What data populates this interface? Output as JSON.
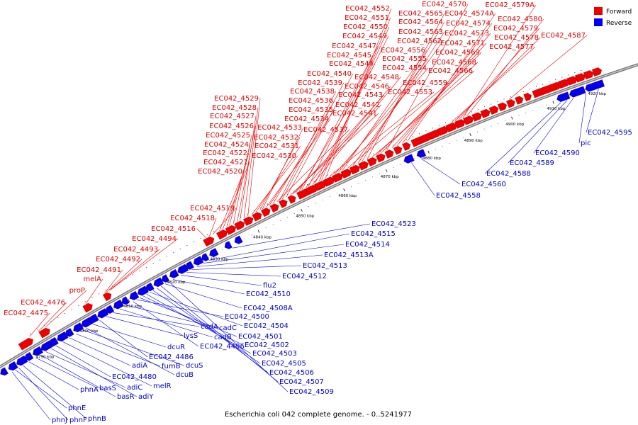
{
  "caption": "Escherichia coli 042 complete genome. - 0..5241977",
  "legend": [
    {
      "label": "Forward",
      "color": "#ee0000"
    },
    {
      "label": "Reverse",
      "color": "#0000ee"
    }
  ],
  "colors": {
    "forward": "#ee0000",
    "reverse": "#0000ee",
    "backbone": "#888888"
  },
  "ticks": [
    "4790 kbp",
    "4800 kbp",
    "4810 kbp",
    "4820 kbp",
    "4830 kbp",
    "4840 kbp",
    "4850 kbp",
    "4860 kbp",
    "4870 kbp",
    "4880 kbp",
    "4890 kbp",
    "4900 kbp",
    "4910 kbp",
    "4920 kbp"
  ],
  "forward_labels": [
    "EC042_4475",
    "EC042_4476",
    "proP",
    "melA",
    "EC042_4491",
    "EC042_4492",
    "EC042_4493",
    "EC042_4494",
    "EC042_4516",
    "EC042_4518",
    "EC042_4519",
    "EC042_4520",
    "EC042_4521",
    "EC042_4522",
    "EC042_4524",
    "EC042_4525",
    "EC042_4526",
    "EC042_4527",
    "EC042_4528",
    "EC042_4529",
    "EC042_4530",
    "EC042_4531",
    "EC042_4532",
    "EC042_4533",
    "EC042_4534",
    "EC042_4535",
    "EC042_4536",
    "EC042_4537",
    "EC042_4538",
    "EC042_4539",
    "EC042_4540",
    "EC042_4541",
    "EC042_4542",
    "EC042_4543",
    "EC042_4544",
    "EC042_4545",
    "EC042_4546",
    "EC042_4547",
    "EC042_4548",
    "EC042_4549",
    "EC042_4550",
    "EC042_4551",
    "EC042_4552",
    "EC042_4553",
    "EC042_4554",
    "EC042_4555",
    "EC042_4556",
    "EC042_4559",
    "EC042_4562",
    "EC042_4563",
    "EC042_4564",
    "EC042_4565",
    "EC042_4566",
    "EC042_4568",
    "EC042_4569",
    "EC042_4570",
    "EC042_4571",
    "EC042_4573",
    "EC042_4574",
    "EC042_4574A",
    "EC042_4577",
    "EC042_4578",
    "EC042_4579",
    "EC042_4579A",
    "EC042_4580",
    "EC042_4587"
  ],
  "reverse_labels": [
    "phnJ",
    "phnE",
    "phnF",
    "phnB",
    "phnA",
    "basS",
    "basR",
    "adiC",
    "adiY",
    "EC042_4480",
    "melR",
    "adiA",
    "fumB",
    "dcuS",
    "dcuB",
    "dcuR",
    "EC042_4486",
    "lysS",
    "cadA",
    "cadB",
    "cadC",
    "EC042_4496",
    "EC042_4500",
    "EC042_4501",
    "EC042_4502",
    "EC042_4503",
    "EC042_4504",
    "EC042_4505",
    "EC042_4506",
    "EC042_4507",
    "EC042_4508A",
    "EC042_4509",
    "EC042_4510",
    "flu2",
    "EC042_4512",
    "EC042_4513",
    "EC042_4513A",
    "EC042_4514",
    "EC042_4515",
    "EC042_4523",
    "EC042_4558",
    "EC042_4560",
    "EC042_4588",
    "EC042_4589",
    "EC042_4590",
    "pic",
    "EC042_4595"
  ]
}
